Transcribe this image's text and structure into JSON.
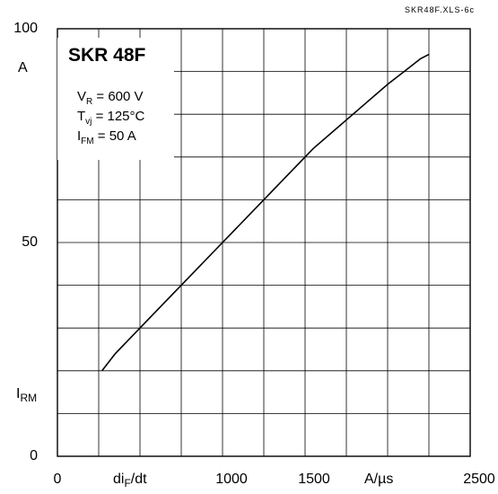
{
  "doc_ref": "SKR48F.XLS-6c",
  "chart_data": {
    "type": "line",
    "title": "SKR 48F",
    "conditions": [
      {
        "symbol": "V",
        "sub": "R",
        "text": " = 600 V"
      },
      {
        "symbol": "T",
        "sub": "vj",
        "text": " = 125°C"
      },
      {
        "symbol": "I",
        "sub": "FM",
        "text": " = 50 A"
      }
    ],
    "ylabel": {
      "symbol": "I",
      "sub": "RM"
    },
    "yunit": "A",
    "xlabel": {
      "symbol": "di",
      "sub": "F",
      "rest": "/dt"
    },
    "xunit": "A/µs",
    "xlim": [
      0,
      2500
    ],
    "ylim": [
      0,
      100
    ],
    "x_ticks": [
      "0",
      "1000",
      "1500",
      "2500"
    ],
    "x_tick_values": [
      0,
      1000,
      1500,
      2500
    ],
    "y_ticks": [
      "100",
      "50",
      "0"
    ],
    "y_tick_values": [
      100,
      50,
      0
    ],
    "grid": true,
    "series": [
      {
        "x": [
          270,
          350,
          500,
          650,
          800,
          950,
          1100,
          1250,
          1400,
          1550,
          1700,
          1850,
          2000,
          2100,
          2200,
          2250
        ],
        "y": [
          20,
          24,
          30,
          36,
          42,
          48,
          54,
          60,
          66,
          72,
          77,
          82,
          87,
          90,
          93,
          94
        ]
      }
    ]
  }
}
